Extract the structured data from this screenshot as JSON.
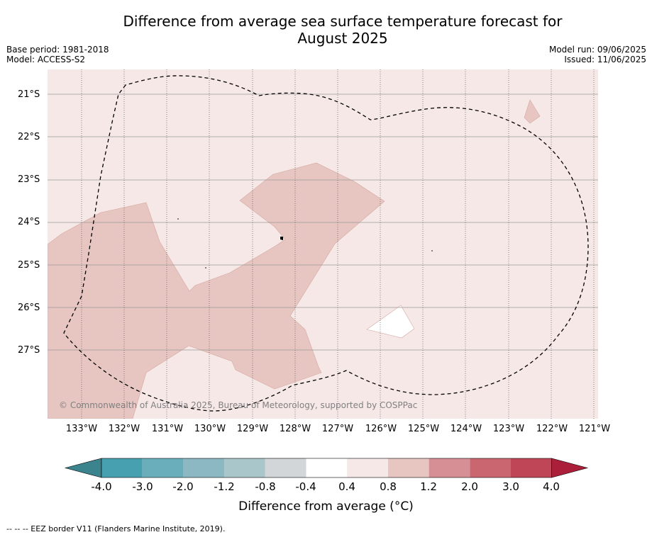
{
  "title_line1": "Difference from average sea surface temperature forecast for",
  "title_line2": "August 2025",
  "base_period": "Base period: 1981-2018",
  "model": "Model: ACCESS-S2",
  "model_run": "Model run: 09/06/2025",
  "issued": "Issued: 11/06/2025",
  "copyright": "© Commonwealth of Australia 2025, Bureau of Meteorology, supported by COSPPac",
  "footnote": "--  --  -- EEZ border V11 (Flanders Marine Institute, 2019).",
  "lat_labels": [
    "21°S",
    "22°S",
    "23°S",
    "24°S",
    "25°S",
    "26°S",
    "27°S"
  ],
  "lon_labels": [
    "133°W",
    "132°W",
    "131°W",
    "130°W",
    "129°W",
    "128°W",
    "127°W",
    "126°W",
    "125°W",
    "124°W",
    "123°W",
    "122°W",
    "121°W"
  ],
  "colorbar": {
    "label": "Difference from average (",
    "unit": "°C)",
    "ticks": [
      "-4.0",
      "-3.0",
      "-2.0",
      "-1.2",
      "-0.8",
      "-0.4",
      "0.4",
      "0.8",
      "1.2",
      "2.0",
      "3.0",
      "4.0"
    ],
    "colors": [
      "#3b838d",
      "#46a0b0",
      "#6aaebb",
      "#8bb8c3",
      "#a9c6cb",
      "#d2d6d8",
      "#ffffff",
      "#f6e8e7",
      "#e7c6c1",
      "#d78f96",
      "#ca6670",
      "#bf4656",
      "#ac1f3a"
    ]
  },
  "map_colors": {
    "background": "#f6e8e7",
    "warm": "#e7c6c1",
    "neutral": "#ffffff"
  }
}
